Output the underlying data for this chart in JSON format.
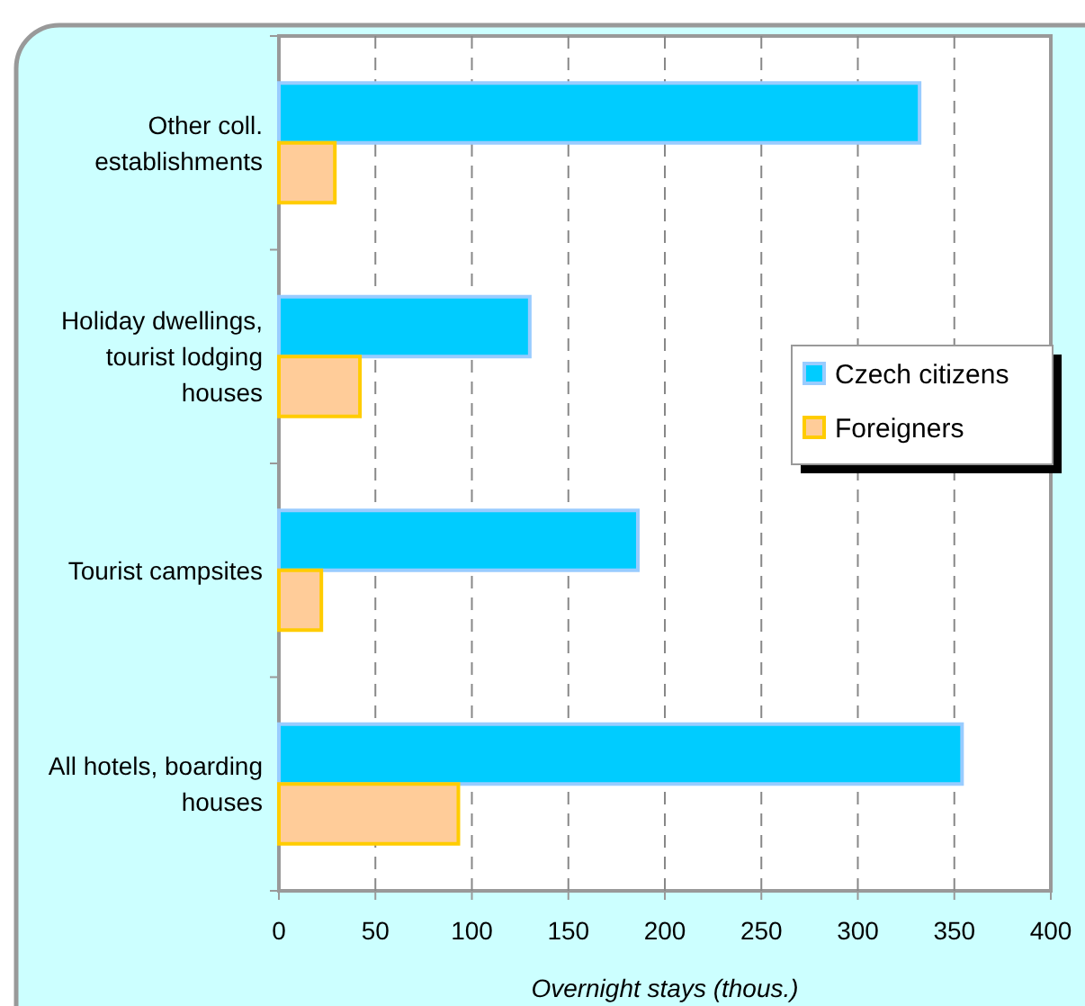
{
  "chart_data": {
    "type": "bar",
    "orientation": "horizontal",
    "categories": [
      "Other coll. establishments",
      "Holiday dwellings, tourist lodging houses",
      "Tourist campsites",
      "All hotels, boarding houses"
    ],
    "series": [
      {
        "name": "Czech citizens",
        "color": "#00ccff",
        "values": [
          332,
          130,
          186,
          354
        ]
      },
      {
        "name": "Foreigners",
        "color": "#ffcc99",
        "values": [
          29,
          42,
          22,
          93
        ]
      }
    ],
    "xlabel": "Overnight stays (thous.)",
    "xlim": [
      0,
      400
    ],
    "xticks": [
      0,
      50,
      100,
      150,
      200,
      250,
      300,
      350,
      400
    ],
    "grid": "x",
    "legend": "right"
  }
}
